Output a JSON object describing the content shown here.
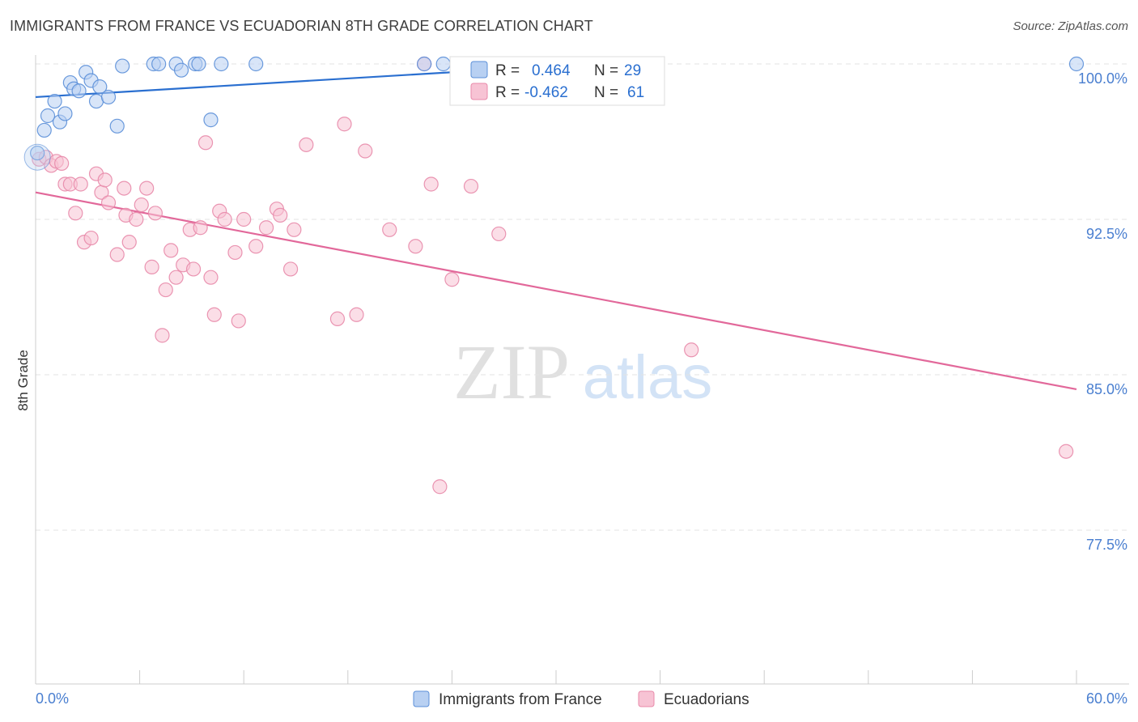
{
  "title": "IMMIGRANTS FROM FRANCE VS ECUADORIAN 8TH GRADE CORRELATION CHART",
  "source": "Source: ZipAtlas.com",
  "watermark": {
    "zip": "ZIP",
    "atlas": "atlas"
  },
  "colors": {
    "blue_fill": "#b8d0f2",
    "blue_stroke": "#5b8fd8",
    "blue_line": "#2a6fd0",
    "pink_fill": "#f7c3d4",
    "pink_stroke": "#e88aaa",
    "pink_line": "#e2689a",
    "axis_text": "#4a7fd0"
  },
  "legend": {
    "r_label": "R =",
    "n_label": "N =",
    "rows": [
      {
        "r": "0.464",
        "n": "29"
      },
      {
        "r": "-0.462",
        "n": "61"
      }
    ]
  },
  "chart_data": {
    "type": "scatter",
    "title": "IMMIGRANTS FROM FRANCE VS ECUADORIAN 8TH GRADE CORRELATION CHART",
    "xlabel": "",
    "ylabel": "8th Grade",
    "xlim": [
      0,
      60
    ],
    "ylim": [
      70,
      100.7
    ],
    "x_tick_labels": [
      "0.0%",
      "60.0%"
    ],
    "y_ticks": [
      77.5,
      85.0,
      92.5,
      100.0
    ],
    "y_tick_labels": [
      "77.5%",
      "85.0%",
      "92.5%",
      "100.0%"
    ],
    "grid": true,
    "legend_position": "top-center",
    "series": [
      {
        "name": "Immigrants from France",
        "color": "#5b8fd8",
        "trend": {
          "x": [
            0,
            32
          ],
          "y": [
            98.4,
            100.0
          ]
        },
        "points": [
          [
            0.1,
            95.7
          ],
          [
            0.5,
            96.8
          ],
          [
            0.7,
            97.5
          ],
          [
            1.1,
            98.2
          ],
          [
            1.4,
            97.2
          ],
          [
            1.7,
            97.6
          ],
          [
            2.0,
            99.1
          ],
          [
            2.2,
            98.8
          ],
          [
            2.5,
            98.7
          ],
          [
            2.9,
            99.6
          ],
          [
            3.2,
            99.2
          ],
          [
            3.5,
            98.2
          ],
          [
            3.7,
            98.9
          ],
          [
            4.2,
            98.4
          ],
          [
            4.7,
            97.0
          ],
          [
            5.0,
            99.9
          ],
          [
            6.8,
            100.0
          ],
          [
            7.1,
            100.0
          ],
          [
            8.1,
            100.0
          ],
          [
            8.4,
            99.7
          ],
          [
            9.2,
            100.0
          ],
          [
            9.4,
            100.0
          ],
          [
            10.1,
            97.3
          ],
          [
            10.7,
            100.0
          ],
          [
            12.7,
            100.0
          ],
          [
            22.4,
            100.0
          ],
          [
            23.5,
            100.0
          ],
          [
            31.2,
            100.0
          ],
          [
            60.0,
            100.0
          ]
        ]
      },
      {
        "name": "Ecuadorians",
        "color": "#e88aaa",
        "trend": {
          "x": [
            0,
            60
          ],
          "y": [
            93.8,
            84.3
          ]
        },
        "points": [
          [
            0.2,
            95.4
          ],
          [
            0.6,
            95.5
          ],
          [
            0.9,
            95.1
          ],
          [
            1.2,
            95.3
          ],
          [
            1.5,
            95.2
          ],
          [
            1.7,
            94.2
          ],
          [
            2.0,
            94.2
          ],
          [
            2.3,
            92.8
          ],
          [
            2.6,
            94.2
          ],
          [
            2.8,
            91.4
          ],
          [
            3.2,
            91.6
          ],
          [
            3.5,
            94.7
          ],
          [
            3.8,
            93.8
          ],
          [
            4.0,
            94.4
          ],
          [
            4.2,
            93.3
          ],
          [
            4.7,
            90.8
          ],
          [
            5.1,
            94.0
          ],
          [
            5.2,
            92.7
          ],
          [
            5.4,
            91.4
          ],
          [
            5.8,
            92.5
          ],
          [
            6.1,
            93.2
          ],
          [
            6.4,
            94.0
          ],
          [
            6.7,
            90.2
          ],
          [
            6.9,
            92.8
          ],
          [
            7.3,
            86.9
          ],
          [
            7.5,
            89.1
          ],
          [
            7.8,
            91.0
          ],
          [
            8.1,
            89.7
          ],
          [
            8.5,
            90.3
          ],
          [
            8.9,
            92.0
          ],
          [
            9.1,
            90.1
          ],
          [
            9.5,
            92.1
          ],
          [
            9.8,
            96.2
          ],
          [
            10.1,
            89.7
          ],
          [
            10.3,
            87.9
          ],
          [
            10.6,
            92.9
          ],
          [
            10.9,
            92.5
          ],
          [
            11.5,
            90.9
          ],
          [
            11.7,
            87.6
          ],
          [
            12.0,
            92.5
          ],
          [
            12.7,
            91.2
          ],
          [
            13.3,
            92.1
          ],
          [
            13.9,
            93.0
          ],
          [
            14.1,
            92.7
          ],
          [
            14.7,
            90.1
          ],
          [
            14.9,
            92.0
          ],
          [
            15.6,
            96.1
          ],
          [
            17.4,
            87.7
          ],
          [
            17.8,
            97.1
          ],
          [
            18.5,
            87.9
          ],
          [
            19.0,
            95.8
          ],
          [
            20.4,
            92.0
          ],
          [
            21.9,
            91.2
          ],
          [
            22.4,
            100.0
          ],
          [
            22.8,
            94.2
          ],
          [
            23.3,
            79.6
          ],
          [
            24.0,
            89.6
          ],
          [
            25.1,
            94.1
          ],
          [
            26.7,
            91.8
          ],
          [
            37.8,
            86.2
          ],
          [
            59.4,
            81.3
          ]
        ]
      }
    ]
  }
}
